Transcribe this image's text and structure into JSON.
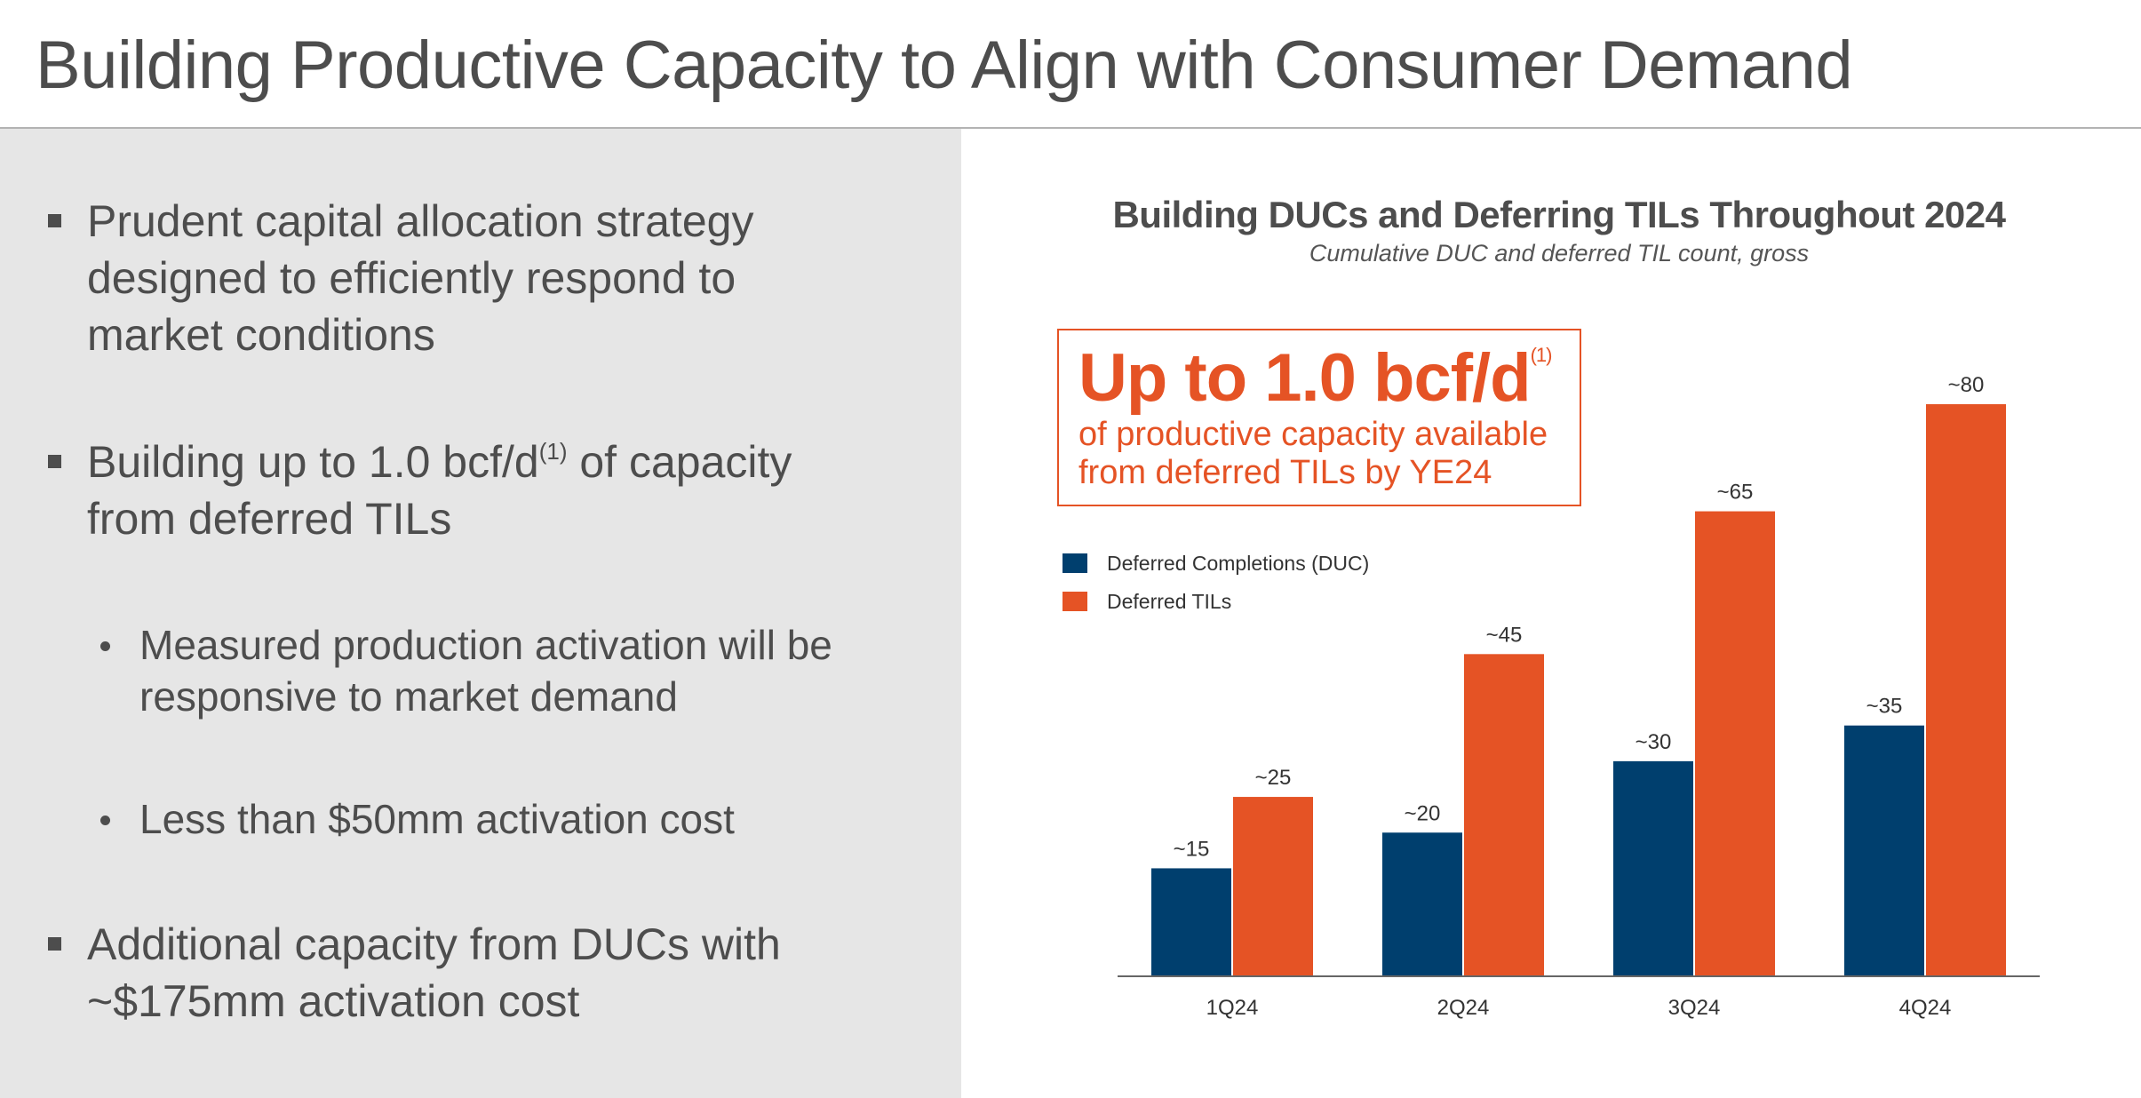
{
  "slide": {
    "title": "Building Productive Capacity to Align with Consumer Demand"
  },
  "bullets": [
    {
      "lines": [
        "Prudent capital allocation strategy",
        "designed to efficiently respond to",
        "market conditions"
      ]
    },
    {
      "line1_pre": "Building up to 1.0 bcf/d",
      "line1_sup": "(1)",
      "line1_post": " of capacity",
      "line2": "from deferred TILs"
    },
    {
      "lines": [
        "Measured production activation will be",
        "responsive to market demand"
      ]
    },
    {
      "lines": [
        "Less than $50mm activation cost"
      ]
    },
    {
      "lines": [
        "Additional capacity from DUCs with",
        "~$175mm activation cost"
      ]
    }
  ],
  "callout": {
    "headline": "Up to 1.0 bcf/d",
    "sup": "(1)",
    "line1": "of productive capacity available",
    "line2": "from deferred TILs by YE24"
  },
  "chart_data": {
    "type": "bar",
    "title": "Building DUCs and Deferring TILs Throughout 2024",
    "subtitle": "Cumulative DUC and deferred TIL count, gross",
    "categories": [
      "1Q24",
      "2Q24",
      "3Q24",
      "4Q24"
    ],
    "series": [
      {
        "name": "Deferred Completions (DUC)",
        "values": [
          15,
          20,
          30,
          35
        ],
        "labels": [
          "~15",
          "~20",
          "~30",
          "~35"
        ],
        "color": "#003f6e"
      },
      {
        "name": "Deferred TILs",
        "values": [
          25,
          45,
          65,
          80
        ],
        "labels": [
          "~25",
          "~45",
          "~65",
          "~80"
        ],
        "color": "#e55325"
      }
    ],
    "ylim": [
      0,
      80
    ],
    "grid": false,
    "legend": "top-left"
  }
}
